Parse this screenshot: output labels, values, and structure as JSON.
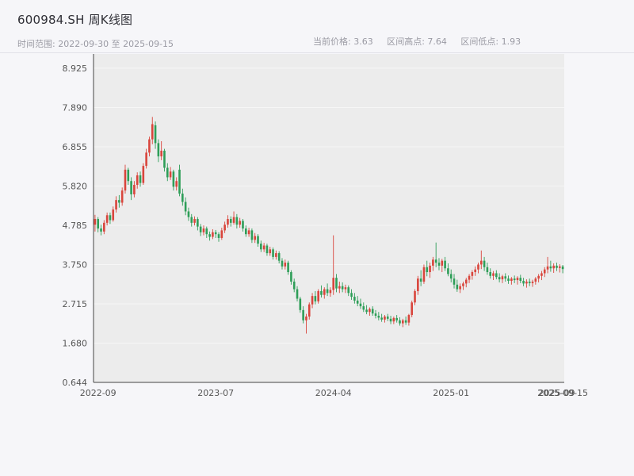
{
  "header": {
    "title": "600984.SH 周K线图",
    "subtitle_left": "时间范围: 2022-09-30 至 2025-09-15",
    "stats": [
      "当前价格: 3.63",
      "区间高点: 7.64",
      "区间低点: 1.93"
    ]
  },
  "chart_data": {
    "type": "candlestick",
    "symbol": "600984.SH",
    "title": "600984.SH 周K线图",
    "period": "weekly",
    "start_date": "2022-09-30",
    "end_date": "2025-09-15",
    "current_price": 3.63,
    "range_high": 7.64,
    "range_low": 1.93,
    "up_color": "#d9453c",
    "down_color": "#2e9e58",
    "plot_bg": "#ececec",
    "axis_color": "#444444",
    "tick_label_color": "#555555",
    "ylim": [
      0.644,
      9.3
    ],
    "y_ticks": [
      "0.644",
      "1.680",
      "2.715",
      "3.750",
      "4.785",
      "5.820",
      "6.855",
      "7.890",
      "8.925"
    ],
    "x_ticks": [
      {
        "index": 1,
        "label": "2022-09"
      },
      {
        "index": 40,
        "label": "2023-07"
      },
      {
        "index": 79,
        "label": "2024-04"
      },
      {
        "index": 118,
        "label": "2025-01"
      },
      {
        "index": 153,
        "label": "2025-09"
      },
      {
        "index": 155,
        "label": "2025-09-15"
      }
    ],
    "candles_format": [
      "open",
      "high",
      "low",
      "close"
    ],
    "candles": [
      [
        4.8,
        5.06,
        4.62,
        4.95
      ],
      [
        4.95,
        5.0,
        4.6,
        4.7
      ],
      [
        4.7,
        4.8,
        4.52,
        4.62
      ],
      [
        4.62,
        4.92,
        4.55,
        4.85
      ],
      [
        4.85,
        5.12,
        4.78,
        5.05
      ],
      [
        5.05,
        5.12,
        4.82,
        4.92
      ],
      [
        4.92,
        5.28,
        4.88,
        5.2
      ],
      [
        5.2,
        5.55,
        5.12,
        5.45
      ],
      [
        5.45,
        5.58,
        5.25,
        5.38
      ],
      [
        5.38,
        5.78,
        5.3,
        5.7
      ],
      [
        5.7,
        6.38,
        5.62,
        6.25
      ],
      [
        6.25,
        6.3,
        5.85,
        5.95
      ],
      [
        5.95,
        6.05,
        5.45,
        5.6
      ],
      [
        5.6,
        5.95,
        5.52,
        5.85
      ],
      [
        5.85,
        6.18,
        5.75,
        6.1
      ],
      [
        6.1,
        6.2,
        5.8,
        5.9
      ],
      [
        5.9,
        6.42,
        5.85,
        6.35
      ],
      [
        6.35,
        6.8,
        6.28,
        6.7
      ],
      [
        6.7,
        7.12,
        6.6,
        7.05
      ],
      [
        7.05,
        7.64,
        6.92,
        7.45
      ],
      [
        7.42,
        7.52,
        6.8,
        6.95
      ],
      [
        6.95,
        7.05,
        6.45,
        6.6
      ],
      [
        6.6,
        7.0,
        6.5,
        6.75
      ],
      [
        6.75,
        6.8,
        6.2,
        6.3
      ],
      [
        6.3,
        6.42,
        5.95,
        6.05
      ],
      [
        6.05,
        6.32,
        5.98,
        6.2
      ],
      [
        6.2,
        6.25,
        5.7,
        5.8
      ],
      [
        5.8,
        6.05,
        5.7,
        5.95
      ],
      [
        6.25,
        6.38,
        5.55,
        5.62
      ],
      [
        5.62,
        5.75,
        5.3,
        5.4
      ],
      [
        5.4,
        5.52,
        5.05,
        5.15
      ],
      [
        5.15,
        5.25,
        4.9,
        5.0
      ],
      [
        5.0,
        5.08,
        4.75,
        4.85
      ],
      [
        4.85,
        5.02,
        4.78,
        4.95
      ],
      [
        4.95,
        5.0,
        4.65,
        4.75
      ],
      [
        4.75,
        4.82,
        4.5,
        4.6
      ],
      [
        4.6,
        4.78,
        4.52,
        4.7
      ],
      [
        4.7,
        4.75,
        4.45,
        4.55
      ],
      [
        4.55,
        4.62,
        4.38,
        4.48
      ],
      [
        4.48,
        4.68,
        4.42,
        4.6
      ],
      [
        4.6,
        4.66,
        4.45,
        4.55
      ],
      [
        4.55,
        4.6,
        4.35,
        4.45
      ],
      [
        4.45,
        4.72,
        4.4,
        4.65
      ],
      [
        4.65,
        4.88,
        4.58,
        4.8
      ],
      [
        4.8,
        5.05,
        4.72,
        4.95
      ],
      [
        4.95,
        5.02,
        4.75,
        4.85
      ],
      [
        4.85,
        5.15,
        4.8,
        5.0
      ],
      [
        5.0,
        5.08,
        4.7,
        4.8
      ],
      [
        4.8,
        4.98,
        4.72,
        4.9
      ],
      [
        4.9,
        4.95,
        4.62,
        4.7
      ],
      [
        4.7,
        4.78,
        4.48,
        4.55
      ],
      [
        4.55,
        4.72,
        4.48,
        4.65
      ],
      [
        4.65,
        4.7,
        4.32,
        4.4
      ],
      [
        4.4,
        4.58,
        4.32,
        4.5
      ],
      [
        4.5,
        4.55,
        4.22,
        4.3
      ],
      [
        4.3,
        4.38,
        4.08,
        4.15
      ],
      [
        4.15,
        4.32,
        4.08,
        4.25
      ],
      [
        4.25,
        4.3,
        3.98,
        4.05
      ],
      [
        4.05,
        4.22,
        3.98,
        4.15
      ],
      [
        4.15,
        4.2,
        3.88,
        3.95
      ],
      [
        3.95,
        4.12,
        3.88,
        4.05
      ],
      [
        4.05,
        4.1,
        3.78,
        3.85
      ],
      [
        3.85,
        3.92,
        3.62,
        3.7
      ],
      [
        3.7,
        3.88,
        3.62,
        3.8
      ],
      [
        3.8,
        3.85,
        3.48,
        3.55
      ],
      [
        3.55,
        3.6,
        3.22,
        3.3
      ],
      [
        3.3,
        3.38,
        3.02,
        3.1
      ],
      [
        3.1,
        3.18,
        2.78,
        2.85
      ],
      [
        2.85,
        2.9,
        2.48,
        2.55
      ],
      [
        2.55,
        2.65,
        2.2,
        2.28
      ],
      [
        2.28,
        2.45,
        1.93,
        2.38
      ],
      [
        2.38,
        2.75,
        2.3,
        2.7
      ],
      [
        2.7,
        3.0,
        2.6,
        2.92
      ],
      [
        2.92,
        3.05,
        2.7,
        2.78
      ],
      [
        2.78,
        3.1,
        2.72,
        3.05
      ],
      [
        3.05,
        3.2,
        2.88,
        2.95
      ],
      [
        2.95,
        3.15,
        2.85,
        3.1
      ],
      [
        3.1,
        3.25,
        2.92,
        3.0
      ],
      [
        3.0,
        3.15,
        2.9,
        3.08
      ],
      [
        3.08,
        4.52,
        2.95,
        3.4
      ],
      [
        3.4,
        3.5,
        3.02,
        3.12
      ],
      [
        3.12,
        3.3,
        3.0,
        3.18
      ],
      [
        3.18,
        3.28,
        3.02,
        3.1
      ],
      [
        3.1,
        3.22,
        3.0,
        3.15
      ],
      [
        3.15,
        3.2,
        2.92,
        3.0
      ],
      [
        3.0,
        3.1,
        2.82,
        2.9
      ],
      [
        2.9,
        3.0,
        2.72,
        2.8
      ],
      [
        2.8,
        2.92,
        2.65,
        2.72
      ],
      [
        2.72,
        2.85,
        2.58,
        2.65
      ],
      [
        2.65,
        2.75,
        2.5,
        2.56
      ],
      [
        2.56,
        2.68,
        2.44,
        2.5
      ],
      [
        2.5,
        2.62,
        2.4,
        2.58
      ],
      [
        2.58,
        2.65,
        2.4,
        2.46
      ],
      [
        2.46,
        2.55,
        2.33,
        2.4
      ],
      [
        2.4,
        2.5,
        2.28,
        2.35
      ],
      [
        2.35,
        2.45,
        2.24,
        2.3
      ],
      [
        2.3,
        2.42,
        2.22,
        2.38
      ],
      [
        2.38,
        2.45,
        2.26,
        2.32
      ],
      [
        2.32,
        2.4,
        2.18,
        2.25
      ],
      [
        2.25,
        2.38,
        2.18,
        2.34
      ],
      [
        2.34,
        2.42,
        2.22,
        2.28
      ],
      [
        2.28,
        2.36,
        2.14,
        2.2
      ],
      [
        2.2,
        2.32,
        2.1,
        2.28
      ],
      [
        2.28,
        2.38,
        2.16,
        2.22
      ],
      [
        2.22,
        2.45,
        2.14,
        2.42
      ],
      [
        2.42,
        2.8,
        2.36,
        2.75
      ],
      [
        2.75,
        3.1,
        2.68,
        3.05
      ],
      [
        3.05,
        3.45,
        2.95,
        3.38
      ],
      [
        3.38,
        3.6,
        3.18,
        3.3
      ],
      [
        3.3,
        3.75,
        3.24,
        3.68
      ],
      [
        3.68,
        3.85,
        3.44,
        3.55
      ],
      [
        3.55,
        3.8,
        3.4,
        3.72
      ],
      [
        3.72,
        3.95,
        3.58,
        3.88
      ],
      [
        3.88,
        4.33,
        3.68,
        3.8
      ],
      [
        3.8,
        3.92,
        3.6,
        3.72
      ],
      [
        3.72,
        3.9,
        3.55,
        3.85
      ],
      [
        3.85,
        3.95,
        3.58,
        3.65
      ],
      [
        3.65,
        3.78,
        3.44,
        3.5
      ],
      [
        3.5,
        3.62,
        3.28,
        3.38
      ],
      [
        3.38,
        3.5,
        3.12,
        3.22
      ],
      [
        3.22,
        3.35,
        3.03,
        3.1
      ],
      [
        3.1,
        3.25,
        3.0,
        3.18
      ],
      [
        3.18,
        3.3,
        3.08,
        3.25
      ],
      [
        3.25,
        3.4,
        3.15,
        3.35
      ],
      [
        3.35,
        3.5,
        3.26,
        3.45
      ],
      [
        3.45,
        3.6,
        3.35,
        3.55
      ],
      [
        3.55,
        3.7,
        3.45,
        3.62
      ],
      [
        3.62,
        3.8,
        3.52,
        3.75
      ],
      [
        3.75,
        4.12,
        3.63,
        3.85
      ],
      [
        3.85,
        3.95,
        3.58,
        3.68
      ],
      [
        3.68,
        3.8,
        3.48,
        3.55
      ],
      [
        3.55,
        3.65,
        3.38,
        3.45
      ],
      [
        3.45,
        3.58,
        3.34,
        3.52
      ],
      [
        3.52,
        3.6,
        3.36,
        3.42
      ],
      [
        3.42,
        3.52,
        3.28,
        3.36
      ],
      [
        3.36,
        3.48,
        3.26,
        3.44
      ],
      [
        3.44,
        3.52,
        3.3,
        3.38
      ],
      [
        3.38,
        3.46,
        3.24,
        3.32
      ],
      [
        3.32,
        3.42,
        3.22,
        3.38
      ],
      [
        3.38,
        3.46,
        3.26,
        3.34
      ],
      [
        3.34,
        3.44,
        3.22,
        3.4
      ],
      [
        3.4,
        3.48,
        3.26,
        3.32
      ],
      [
        3.32,
        3.4,
        3.18,
        3.25
      ],
      [
        3.25,
        3.36,
        3.14,
        3.3
      ],
      [
        3.3,
        3.38,
        3.18,
        3.26
      ],
      [
        3.26,
        3.35,
        3.16,
        3.3
      ],
      [
        3.3,
        3.42,
        3.22,
        3.38
      ],
      [
        3.38,
        3.5,
        3.28,
        3.45
      ],
      [
        3.45,
        3.58,
        3.34,
        3.52
      ],
      [
        3.52,
        3.68,
        3.42,
        3.62
      ],
      [
        3.62,
        3.95,
        3.52,
        3.7
      ],
      [
        3.7,
        3.85,
        3.56,
        3.65
      ],
      [
        3.65,
        3.78,
        3.53,
        3.72
      ],
      [
        3.72,
        3.8,
        3.58,
        3.66
      ],
      [
        3.66,
        3.76,
        3.54,
        3.7
      ],
      [
        3.7,
        3.74,
        3.52,
        3.63
      ]
    ]
  }
}
